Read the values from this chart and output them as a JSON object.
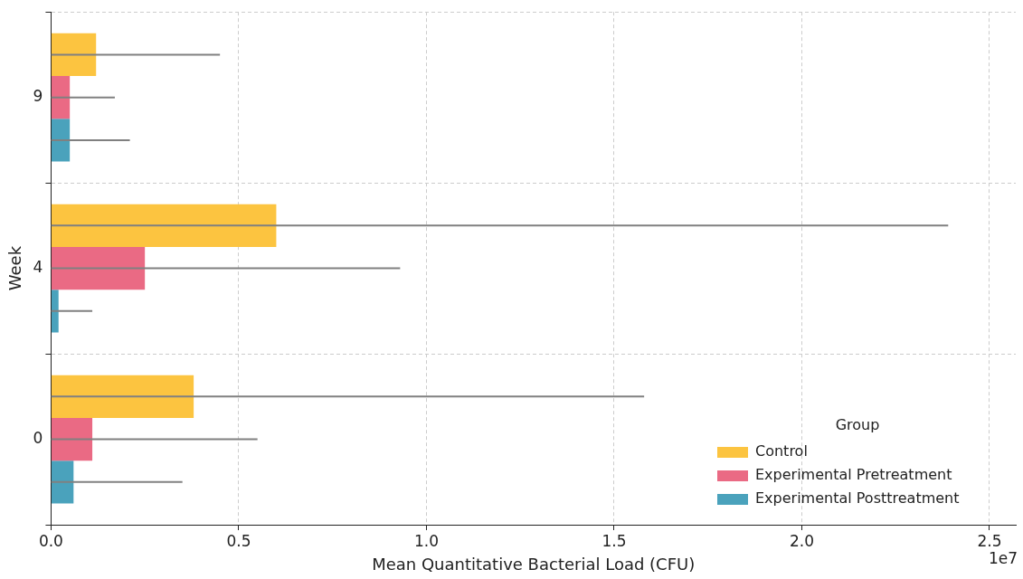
{
  "chart_data": {
    "type": "bar",
    "orientation": "horizontal",
    "xlabel": "Mean Quantitative Bacterial Load (CFU)",
    "ylabel": "Week",
    "legend_title": "Group",
    "annotations": [
      "1e7"
    ],
    "categories": [
      "9",
      "4",
      "0"
    ],
    "series": [
      {
        "name": "Control",
        "color": "#fcc440",
        "values": [
          0.12,
          0.6,
          0.38
        ],
        "errors": [
          [
            0,
            0.45
          ],
          [
            0,
            2.39
          ],
          [
            0,
            1.58
          ]
        ]
      },
      {
        "name": "Experimental Pretreatment",
        "color": "#ea6a84",
        "values": [
          0.05,
          0.25,
          0.11
        ],
        "errors": [
          [
            0,
            0.17
          ],
          [
            0,
            0.93
          ],
          [
            0,
            0.55
          ]
        ]
      },
      {
        "name": "Experimental Posttreatment",
        "color": "#4aa2bc",
        "values": [
          0.05,
          0.02,
          0.06
        ],
        "errors": [
          [
            0,
            0.21
          ],
          [
            0,
            0.11
          ],
          [
            0,
            0.35
          ]
        ]
      }
    ],
    "xlim": [
      0,
      2.57
    ],
    "xticks": [
      {
        "value": 0,
        "label": "0.0"
      },
      {
        "value": 0.5,
        "label": "0.5"
      },
      {
        "value": 1,
        "label": "1.0"
      },
      {
        "value": 1.5,
        "label": "1.5"
      },
      {
        "value": 2,
        "label": "2.0"
      },
      {
        "value": 2.5,
        "label": "2.5"
      }
    ],
    "grid": true,
    "legend": "bottom right"
  }
}
